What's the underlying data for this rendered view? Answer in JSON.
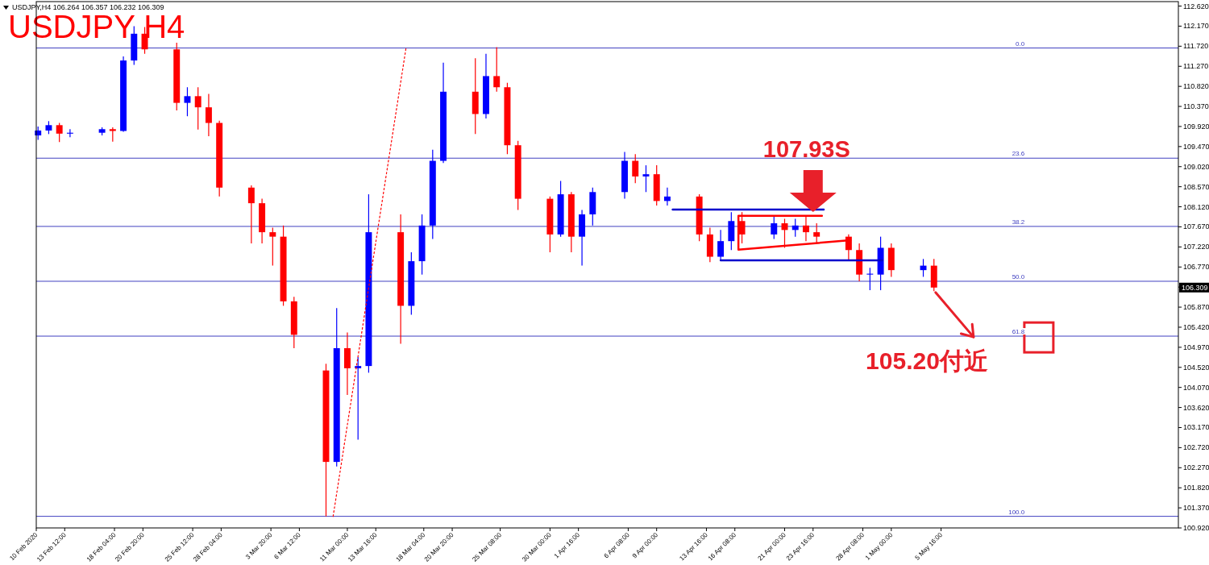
{
  "chart_data": {
    "type": "candlestick",
    "title": "USDJPY H4",
    "subtitle": "USDJPY,H4  106.264 106.357 106.232 106.309",
    "x": [
      "2020-02-11",
      "2020-02-12",
      "2020-02-13",
      "2020-02-14",
      "2020-02-17",
      "2020-02-18",
      "2020-02-19",
      "2020-02-20",
      "2020-02-21",
      "2020-02-24",
      "2020-02-25",
      "2020-02-26",
      "2020-02-27",
      "2020-02-28",
      "2020-03-02",
      "2020-03-03",
      "2020-03-04",
      "2020-03-05",
      "2020-03-06",
      "2020-03-09",
      "2020-03-10",
      "2020-03-11",
      "2020-03-12",
      "2020-03-13",
      "2020-03-16",
      "2020-03-17",
      "2020-03-18",
      "2020-03-19",
      "2020-03-20",
      "2020-03-23",
      "2020-03-24",
      "2020-03-25",
      "2020-03-26",
      "2020-03-27",
      "2020-03-30",
      "2020-03-31",
      "2020-04-01",
      "2020-04-02",
      "2020-04-03",
      "2020-04-06",
      "2020-04-07",
      "2020-04-08",
      "2020-04-09",
      "2020-04-10",
      "2020-04-13",
      "2020-04-14",
      "2020-04-15",
      "2020-04-16",
      "2020-04-17",
      "2020-04-20",
      "2020-04-21",
      "2020-04-22",
      "2020-04-23",
      "2020-04-24",
      "2020-04-27",
      "2020-04-28",
      "2020-04-29",
      "2020-04-30",
      "2020-05-01",
      "2020-05-04",
      "2020-05-05"
    ],
    "ohlc": [
      [
        109.72,
        109.92,
        109.62,
        109.83
      ],
      [
        109.83,
        110.04,
        109.75,
        109.95
      ],
      [
        109.95,
        110.0,
        109.57,
        109.76
      ],
      [
        109.76,
        109.86,
        109.68,
        109.78
      ],
      [
        109.78,
        109.9,
        109.72,
        109.86
      ],
      [
        109.86,
        109.9,
        109.58,
        109.82
      ],
      [
        109.82,
        111.49,
        109.8,
        111.4
      ],
      [
        111.4,
        112.17,
        111.3,
        112.0
      ],
      [
        112.0,
        112.15,
        111.55,
        111.65
      ],
      [
        111.65,
        111.8,
        110.28,
        110.45
      ],
      [
        110.45,
        110.8,
        110.15,
        110.6
      ],
      [
        110.6,
        110.8,
        109.85,
        110.35
      ],
      [
        110.35,
        110.65,
        109.7,
        110.0
      ],
      [
        110.0,
        110.05,
        108.35,
        108.55
      ],
      [
        108.55,
        108.6,
        107.3,
        108.2
      ],
      [
        108.2,
        108.3,
        107.3,
        107.55
      ],
      [
        107.55,
        107.65,
        106.8,
        107.45
      ],
      [
        107.45,
        107.7,
        105.9,
        106.0
      ],
      [
        106.0,
        106.1,
        104.95,
        105.25
      ],
      [
        104.45,
        104.6,
        101.18,
        102.4
      ],
      [
        102.4,
        105.85,
        102.3,
        104.95
      ],
      [
        104.95,
        105.3,
        103.9,
        104.5
      ],
      [
        104.5,
        104.75,
        102.9,
        104.55
      ],
      [
        104.55,
        108.4,
        104.4,
        107.55
      ],
      [
        107.55,
        107.95,
        105.05,
        105.9
      ],
      [
        105.9,
        107.1,
        105.7,
        106.9
      ],
      [
        106.9,
        107.95,
        106.6,
        107.7
      ],
      [
        107.7,
        109.4,
        107.4,
        109.15
      ],
      [
        109.15,
        111.35,
        109.1,
        110.7
      ],
      [
        110.7,
        111.45,
        109.75,
        110.2
      ],
      [
        110.2,
        111.55,
        110.1,
        111.05
      ],
      [
        111.05,
        111.7,
        110.7,
        110.8
      ],
      [
        110.8,
        110.9,
        109.3,
        109.5
      ],
      [
        109.5,
        109.6,
        108.05,
        108.3
      ],
      [
        108.3,
        108.35,
        107.1,
        107.5
      ],
      [
        107.5,
        108.7,
        107.45,
        108.4
      ],
      [
        108.4,
        108.45,
        107.1,
        107.45
      ],
      [
        107.45,
        108.05,
        106.8,
        107.95
      ],
      [
        107.95,
        108.55,
        107.7,
        108.45
      ],
      [
        108.45,
        109.35,
        108.3,
        109.15
      ],
      [
        109.15,
        109.3,
        108.65,
        108.8
      ],
      [
        108.8,
        109.05,
        108.45,
        108.85
      ],
      [
        108.85,
        109.05,
        108.15,
        108.25
      ],
      [
        108.25,
        108.55,
        108.15,
        108.35
      ],
      [
        108.35,
        108.4,
        107.35,
        107.5
      ],
      [
        107.5,
        107.65,
        106.88,
        107.0
      ],
      [
        107.0,
        107.6,
        106.9,
        107.35
      ],
      [
        107.35,
        108.0,
        107.15,
        107.8
      ],
      [
        107.8,
        108.0,
        107.3,
        107.5
      ],
      [
        107.5,
        107.9,
        107.4,
        107.75
      ],
      [
        107.75,
        107.85,
        107.2,
        107.6
      ],
      [
        107.6,
        107.85,
        107.45,
        107.7
      ],
      [
        107.7,
        107.93,
        107.35,
        107.55
      ],
      [
        107.55,
        107.75,
        107.3,
        107.45
      ],
      [
        107.45,
        107.5,
        106.9,
        107.15
      ],
      [
        107.15,
        107.3,
        106.45,
        106.6
      ],
      [
        106.6,
        106.75,
        106.25,
        106.62
      ],
      [
        106.6,
        107.45,
        106.25,
        107.2
      ],
      [
        107.2,
        107.3,
        106.55,
        106.7
      ],
      [
        106.7,
        106.95,
        106.55,
        106.8
      ],
      [
        106.8,
        106.95,
        106.23,
        106.309
      ]
    ],
    "colors": [
      "#0000ff",
      "#0000ff",
      "#ff0000",
      "#0000ff",
      "#0000ff",
      "#ff0000",
      "#0000ff",
      "#0000ff",
      "#ff0000",
      "#ff0000",
      "#0000ff",
      "#ff0000",
      "#ff0000",
      "#ff0000",
      "#ff0000",
      "#ff0000",
      "#ff0000",
      "#ff0000",
      "#ff0000",
      "#ff0000",
      "#0000ff",
      "#ff0000",
      "#0000ff",
      "#0000ff",
      "#ff0000",
      "#0000ff",
      "#0000ff",
      "#0000ff",
      "#0000ff",
      "#ff0000",
      "#0000ff",
      "#ff0000",
      "#ff0000",
      "#ff0000",
      "#ff0000",
      "#0000ff",
      "#ff0000",
      "#0000ff",
      "#0000ff",
      "#0000ff",
      "#ff0000",
      "#0000ff",
      "#ff0000",
      "#0000ff",
      "#ff0000",
      "#ff0000",
      "#0000ff",
      "#0000ff",
      "#ff0000",
      "#0000ff",
      "#ff0000",
      "#0000ff",
      "#ff0000",
      "#ff0000",
      "#ff0000",
      "#ff0000",
      "#0000ff",
      "#0000ff",
      "#ff0000",
      "#0000ff",
      "#ff0000"
    ],
    "series": [
      {
        "type": "line",
        "color": "#0000cc",
        "line_style": "solid",
        "x": [
          "2020-04-10T12:00",
          "2020-04-24T16:00"
        ],
        "values": [
          108.06,
          108.06
        ]
      },
      {
        "type": "line",
        "color": "#0000cc",
        "line_style": "solid",
        "x": [
          "2020-04-15T00:00",
          "2020-04-30T04:00"
        ],
        "values": [
          106.92,
          106.92
        ]
      },
      {
        "type": "line",
        "color": "#ff0000",
        "line_style": "solid",
        "x": [
          "2020-04-24T12:00",
          "2020-04-16T16:00",
          "2020-04-16T16:00",
          "2020-04-27T04:00"
        ],
        "values": [
          107.92,
          107.92,
          107.16,
          107.37
        ]
      },
      {
        "type": "line",
        "color": "#ff0000",
        "line_style": "dotted",
        "x": [
          "2020-03-09T16:00",
          "2020-03-16T12:00"
        ],
        "values": [
          101.18,
          111.68
        ]
      }
    ],
    "ref_lines": [
      {
        "axis": "y",
        "value": 111.68,
        "color": "#4040c0"
      },
      {
        "axis": "y",
        "value": 109.21,
        "color": "#4040c0"
      },
      {
        "axis": "y",
        "value": 107.68,
        "color": "#4040c0"
      },
      {
        "axis": "y",
        "value": 106.45,
        "color": "#4040c0"
      },
      {
        "axis": "y",
        "value": 105.22,
        "color": "#4040c0"
      },
      {
        "axis": "y",
        "value": 101.18,
        "color": "#4040c0"
      }
    ],
    "annotations": [
      {
        "text": "107.93S",
        "x": "2020-04-23T16:00",
        "y": 107.93
      },
      {
        "text": "105.20付近",
        "x": "2020-05-14T20:00",
        "y": 105.2
      },
      {
        "text": "106.309",
        "y": 106.309
      },
      {
        "text": "0.0",
        "x": "2020-05-13T12:00",
        "y": 111.68
      },
      {
        "text": "23.6",
        "x": "2020-05-13T12:00",
        "y": 109.21
      },
      {
        "text": "38.2",
        "x": "2020-05-13T12:00",
        "y": 107.68
      },
      {
        "text": "50.0",
        "x": "2020-05-13T12:00",
        "y": 106.45
      },
      {
        "text": "61.8",
        "x": "2020-05-13T12:00",
        "y": 105.22
      },
      {
        "text": "100.0",
        "x": "2020-05-13T12:00",
        "y": 101.18
      }
    ],
    "xlim": [
      "2020-02-10T20:00",
      "2020-05-27T22:00"
    ],
    "xticks": [
      {
        "value": "2020-02-10T20:00",
        "label": "10 Feb 2020"
      },
      {
        "value": "2020-02-13T12:00",
        "label": "13 Feb 12:00"
      },
      {
        "value": "2020-02-18T04:00",
        "label": "18 Feb 04:00"
      },
      {
        "value": "2020-02-20T20:00",
        "label": "20 Feb 20:00"
      },
      {
        "value": "2020-02-25T12:00",
        "label": "25 Feb 12:00"
      },
      {
        "value": "2020-02-28T04:00",
        "label": "28 Feb 04:00"
      },
      {
        "value": "2020-03-03T20:00",
        "label": "3 Mar 20:00"
      },
      {
        "value": "2020-03-06T12:00",
        "label": "6 Mar 12:00"
      },
      {
        "value": "2020-03-11T00:00",
        "label": "11 Mar 00:00"
      },
      {
        "value": "2020-03-13T16:00",
        "label": "13 Mar 16:00"
      },
      {
        "value": "2020-03-18T04:00",
        "label": "18 Mar 04:00"
      },
      {
        "value": "2020-03-20T20:00",
        "label": "20 Mar 20:00"
      },
      {
        "value": "2020-03-25T08:00",
        "label": "25 Mar 08:00"
      },
      {
        "value": "2020-03-30T00:00",
        "label": "30 Mar 00:00"
      },
      {
        "value": "2020-04-01T16:00",
        "label": "1 Apr 16:00"
      },
      {
        "value": "2020-04-06T08:00",
        "label": "6 Apr 08:00"
      },
      {
        "value": "2020-04-09T00:00",
        "label": "9 Apr 00:00"
      },
      {
        "value": "2020-04-13T16:00",
        "label": "13 Apr 16:00"
      },
      {
        "value": "2020-04-16T08:00",
        "label": "16 Apr 08:00"
      },
      {
        "value": "2020-04-21T00:00",
        "label": "21 Apr 00:00"
      },
      {
        "value": "2020-04-23T16:00",
        "label": "23 Apr 16:00"
      },
      {
        "value": "2020-04-28T08:00",
        "label": "28 Apr 08:00"
      },
      {
        "value": "2020-05-01T00:00",
        "label": "1 May 00:00"
      },
      {
        "value": "2020-05-05T16:00",
        "label": "5 May 16:00"
      }
    ],
    "ylim": [
      100.92,
      112.72
    ],
    "yticks": [
      {
        "value": 100.92,
        "label": "100.920"
      },
      {
        "value": 101.37,
        "label": "101.370"
      },
      {
        "value": 101.82,
        "label": "101.820"
      },
      {
        "value": 102.27,
        "label": "102.270"
      },
      {
        "value": 102.72,
        "label": "102.720"
      },
      {
        "value": 103.17,
        "label": "103.170"
      },
      {
        "value": 103.62,
        "label": "103.620"
      },
      {
        "value": 104.07,
        "label": "104.070"
      },
      {
        "value": 104.52,
        "label": "104.520"
      },
      {
        "value": 104.97,
        "label": "104.970"
      },
      {
        "value": 105.42,
        "label": "105.420"
      },
      {
        "value": 105.87,
        "label": "105.870"
      },
      {
        "value": 106.32,
        "label": null
      },
      {
        "value": 106.77,
        "label": "106.770"
      },
      {
        "value": 107.22,
        "label": "107.220"
      },
      {
        "value": 107.67,
        "label": "107.670"
      },
      {
        "value": 108.12,
        "label": "108.120"
      },
      {
        "value": 108.57,
        "label": "108.570"
      },
      {
        "value": 109.02,
        "label": "109.020"
      },
      {
        "value": 109.47,
        "label": "109.470"
      },
      {
        "value": 109.92,
        "label": "109.920"
      },
      {
        "value": 110.37,
        "label": "110.370"
      },
      {
        "value": 110.82,
        "label": "110.820"
      },
      {
        "value": 111.27,
        "label": "111.270"
      },
      {
        "value": 111.72,
        "label": "111.720"
      },
      {
        "value": 112.17,
        "label": "112.170"
      },
      {
        "value": 112.62,
        "label": "112.620"
      }
    ]
  }
}
